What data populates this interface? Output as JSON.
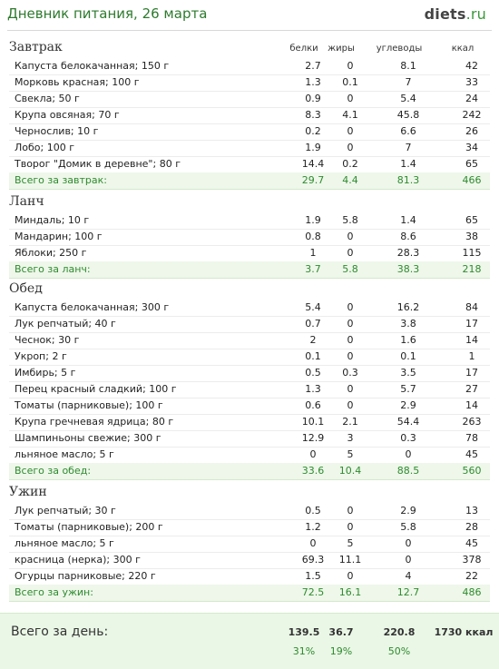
{
  "header": {
    "title": "Дневник питания, 26 марта",
    "logo_main": "diets",
    "logo_suffix": ".ru"
  },
  "columns": {
    "protein": "белки",
    "fat": "жиры",
    "carbs": "углеводы",
    "kcal": "ккал"
  },
  "sections": [
    {
      "title": "Завтрак",
      "rows": [
        [
          "Капуста белокачанная; 150 г",
          "2.7",
          "0",
          "8.1",
          "42"
        ],
        [
          "Морковь красная; 100 г",
          "1.3",
          "0.1",
          "7",
          "33"
        ],
        [
          "Свекла; 50 г",
          "0.9",
          "0",
          "5.4",
          "24"
        ],
        [
          "Крупа овсяная; 70 г",
          "8.3",
          "4.1",
          "45.8",
          "242"
        ],
        [
          "Чернослив; 10 г",
          "0.2",
          "0",
          "6.6",
          "26"
        ],
        [
          "Лобо; 100 г",
          "1.9",
          "0",
          "7",
          "34"
        ],
        [
          "Творог \"Домик в деревне\"; 80 г",
          "14.4",
          "0.2",
          "1.4",
          "65"
        ]
      ],
      "total": [
        "Всего за завтрак:",
        "29.7",
        "4.4",
        "81.3",
        "466"
      ]
    },
    {
      "title": "Ланч",
      "rows": [
        [
          "Миндаль; 10 г",
          "1.9",
          "5.8",
          "1.4",
          "65"
        ],
        [
          "Мандарин; 100 г",
          "0.8",
          "0",
          "8.6",
          "38"
        ],
        [
          "Яблоки; 250 г",
          "1",
          "0",
          "28.3",
          "115"
        ]
      ],
      "total": [
        "Всего за ланч:",
        "3.7",
        "5.8",
        "38.3",
        "218"
      ]
    },
    {
      "title": "Обед",
      "rows": [
        [
          "Капуста белокачанная; 300 г",
          "5.4",
          "0",
          "16.2",
          "84"
        ],
        [
          "Лук репчатый; 40 г",
          "0.7",
          "0",
          "3.8",
          "17"
        ],
        [
          "Чеснок; 30 г",
          "2",
          "0",
          "1.6",
          "14"
        ],
        [
          "Укроп; 2 г",
          "0.1",
          "0",
          "0.1",
          "1"
        ],
        [
          "Имбирь; 5 г",
          "0.5",
          "0.3",
          "3.5",
          "17"
        ],
        [
          "Перец красный сладкий; 100 г",
          "1.3",
          "0",
          "5.7",
          "27"
        ],
        [
          "Томаты (парниковые); 100 г",
          "0.6",
          "0",
          "2.9",
          "14"
        ],
        [
          "Крупа гречневая ядрица; 80 г",
          "10.1",
          "2.1",
          "54.4",
          "263"
        ],
        [
          "Шампиньоны свежие; 300 г",
          "12.9",
          "3",
          "0.3",
          "78"
        ],
        [
          "льняное масло; 5 г",
          "0",
          "5",
          "0",
          "45"
        ]
      ],
      "total": [
        "Всего за обед:",
        "33.6",
        "10.4",
        "88.5",
        "560"
      ]
    },
    {
      "title": "Ужин",
      "rows": [
        [
          "Лук репчатый; 30 г",
          "0.5",
          "0",
          "2.9",
          "13"
        ],
        [
          "Томаты (парниковые); 200 г",
          "1.2",
          "0",
          "5.8",
          "28"
        ],
        [
          "льняное масло; 5 г",
          "0",
          "5",
          "0",
          "45"
        ],
        [
          "красница (нерка); 300 г",
          "69.3",
          "11.1",
          "0",
          "378"
        ],
        [
          "Огурцы парниковые; 220 г",
          "1.5",
          "0",
          "4",
          "22"
        ]
      ],
      "total": [
        "Всего за ужин:",
        "72.5",
        "16.1",
        "12.7",
        "486"
      ]
    }
  ],
  "day_total": {
    "label": "Всего за день:",
    "protein": "139.5",
    "fat": "36.7",
    "carbs": "220.8",
    "kcal": "1730 ккал",
    "protein_pct": "31%",
    "fat_pct": "19%",
    "carbs_pct": "50%"
  }
}
